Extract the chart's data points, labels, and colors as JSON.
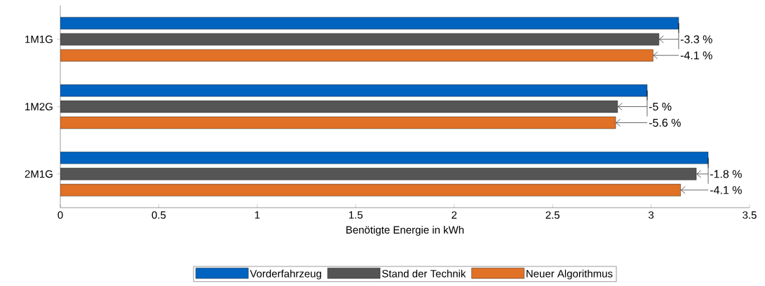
{
  "chart_data": {
    "type": "bar",
    "orientation": "horizontal",
    "xlabel": "Benötigte Energie in kWh",
    "categories": [
      "1M1G",
      "1M2G",
      "2M1G"
    ],
    "series": [
      {
        "name": "Vorderfahrzeug",
        "color": "#0063bf",
        "values": [
          3.14,
          2.98,
          3.29
        ]
      },
      {
        "name": "Stand der Technik",
        "color": "#555555",
        "values": [
          3.04,
          2.83,
          3.23
        ]
      },
      {
        "name": "Neuer Algorithmus",
        "color": "#e07126",
        "values": [
          3.01,
          2.82,
          3.15
        ]
      }
    ],
    "xlim": [
      0,
      3.5
    ],
    "xticks": [
      0,
      0.5,
      1,
      1.5,
      2,
      2.5,
      3,
      3.5
    ],
    "annotations": [
      "-3.3 %",
      "-4.1 %",
      "-5 %",
      "-5.6 %",
      "-1.8 %",
      "-4.1 %"
    ],
    "legend": "bottom",
    "grid": false
  }
}
